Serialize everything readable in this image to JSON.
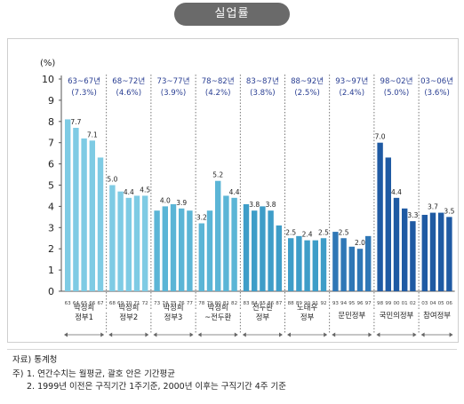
{
  "header": {
    "title": "실업률"
  },
  "chart_data": {
    "type": "bar",
    "ylabel": "(%)",
    "ylim": [
      0,
      10
    ],
    "yticks": [
      0,
      1,
      2,
      3,
      4,
      5,
      6,
      7,
      8,
      9,
      10
    ],
    "grid": false,
    "groups": [
      {
        "period": "63~67년",
        "avg": "(7.3%)",
        "name_lines": [
          "박정희",
          "정부1"
        ],
        "color": "#7ecbe4",
        "years": [
          "63",
          "64",
          "65",
          "66",
          "67"
        ],
        "values": [
          8.1,
          7.7,
          7.2,
          7.1,
          6.3
        ],
        "labels": [
          null,
          "7.7",
          null,
          "7.1",
          null
        ]
      },
      {
        "period": "68~72년",
        "avg": "(4.6%)",
        "name_lines": [
          "박정희",
          "정부2"
        ],
        "color": "#7ecbe4",
        "years": [
          "68",
          "69",
          "70",
          "71",
          "72"
        ],
        "values": [
          5.0,
          4.7,
          4.4,
          4.5,
          4.5
        ],
        "labels": [
          "5.0",
          null,
          "4.4",
          null,
          "4.5"
        ]
      },
      {
        "period": "73~77년",
        "avg": "(3.9%)",
        "name_lines": [
          "박정희",
          "정부3"
        ],
        "color": "#5bb5d6",
        "years": [
          "73",
          "74",
          "75",
          "76",
          "77"
        ],
        "values": [
          3.8,
          4.0,
          4.1,
          3.9,
          3.8
        ],
        "labels": [
          null,
          "4.0",
          null,
          "3.9",
          null
        ]
      },
      {
        "period": "78~82년",
        "avg": "(4.2%)",
        "name_lines": [
          "박정희",
          "~전두환"
        ],
        "color": "#5bb5d6",
        "years": [
          "78",
          "79",
          "80",
          "81",
          "82"
        ],
        "values": [
          3.2,
          3.8,
          5.2,
          4.5,
          4.4
        ],
        "labels": [
          "3.2",
          null,
          "5.2",
          null,
          "4.4"
        ]
      },
      {
        "period": "83~87년",
        "avg": "(3.8%)",
        "name_lines": [
          "전두환",
          "정부"
        ],
        "color": "#3e9dc8",
        "years": [
          "83",
          "84",
          "85",
          "86",
          "87"
        ],
        "values": [
          4.1,
          3.8,
          4.0,
          3.8,
          3.1
        ],
        "labels": [
          null,
          "3.8",
          null,
          "3.8",
          null
        ]
      },
      {
        "period": "88~92년",
        "avg": "(2.5%)",
        "name_lines": [
          "노태우",
          "정부"
        ],
        "color": "#3e9dc8",
        "years": [
          "88",
          "89",
          "90",
          "91",
          "92"
        ],
        "values": [
          2.5,
          2.6,
          2.4,
          2.4,
          2.5
        ],
        "labels": [
          "2.5",
          null,
          "2.4",
          null,
          "2.5"
        ]
      },
      {
        "period": "93~97년",
        "avg": "(2.4%)",
        "name_lines": [
          "문민정부"
        ],
        "color": "#2f77b6",
        "years": [
          "93",
          "94",
          "95",
          "96",
          "97"
        ],
        "values": [
          2.8,
          2.5,
          2.1,
          2.0,
          2.6
        ],
        "labels": [
          null,
          "2.5",
          null,
          "2.0",
          null
        ]
      },
      {
        "period": "98~02년",
        "avg": "(5.0%)",
        "name_lines": [
          "국민의정부"
        ],
        "color": "#1f5aa3",
        "years": [
          "98",
          "99",
          "00",
          "01",
          "02"
        ],
        "values": [
          7.0,
          6.3,
          4.4,
          3.9,
          3.3
        ],
        "labels": [
          "7.0",
          null,
          "4.4",
          null,
          "3.3"
        ]
      },
      {
        "period": "03~06년",
        "avg": "(3.6%)",
        "name_lines": [
          "참여정부"
        ],
        "color": "#1f5aa3",
        "years": [
          "03",
          "04",
          "05",
          "06"
        ],
        "values": [
          3.6,
          3.7,
          3.7,
          3.5
        ],
        "labels": [
          null,
          "3.7",
          null,
          "3.5"
        ]
      }
    ]
  },
  "notes": {
    "source": "자료) 통계청",
    "mark": "주)",
    "note1": "1. 연간수치는 월평균, 괄호 안은 기간평균",
    "note2": "2. 1999년 이전은 구직기간 1주기준, 2000년 이후는 구직기간 4주 기준"
  }
}
